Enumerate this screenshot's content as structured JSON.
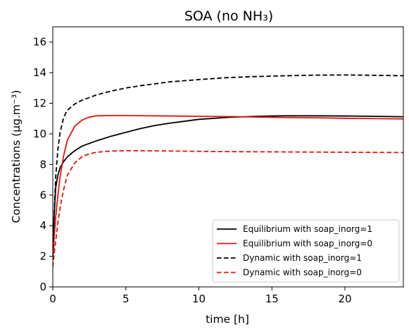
{
  "chart_data": {
    "type": "line",
    "title": "SOA (no NH₃)",
    "xlabel": "time [h]",
    "ylabel": "Concentrations (μg.m⁻³)",
    "xlim": [
      0,
      24
    ],
    "ylim": [
      0,
      17
    ],
    "xticks": [
      0,
      5,
      10,
      15,
      20
    ],
    "yticks": [
      0,
      2,
      4,
      6,
      8,
      10,
      12,
      14,
      16
    ],
    "grid": false,
    "legend_position": "lower-right",
    "series": [
      {
        "name": "Equilibrium with soap_inorg=1",
        "color": "#000000",
        "dash": "solid",
        "x": [
          0,
          0.1,
          0.2,
          0.35,
          0.5,
          0.75,
          1,
          1.5,
          2,
          3,
          4,
          5,
          6,
          7,
          8,
          10,
          12,
          14,
          15,
          16,
          17,
          18,
          20,
          22,
          24
        ],
        "y": [
          2.2,
          4.8,
          6.5,
          7.3,
          7.8,
          8.2,
          8.5,
          8.9,
          9.2,
          9.55,
          9.85,
          10.1,
          10.35,
          10.55,
          10.7,
          10.95,
          11.08,
          11.15,
          11.17,
          11.18,
          11.18,
          11.18,
          11.17,
          11.15,
          11.12
        ]
      },
      {
        "name": "Equilibrium with soap_inorg=0",
        "color": "#e3140c",
        "dash": "solid",
        "x": [
          0,
          0.1,
          0.2,
          0.35,
          0.5,
          0.75,
          1,
          1.5,
          2,
          2.5,
          3,
          4,
          5,
          6,
          8,
          10,
          12,
          14,
          16,
          18,
          20,
          22,
          24
        ],
        "y": [
          1.8,
          3.3,
          4.6,
          6.0,
          7.2,
          8.6,
          9.6,
          10.5,
          10.9,
          11.1,
          11.18,
          11.2,
          11.2,
          11.19,
          11.17,
          11.15,
          11.13,
          11.1,
          11.07,
          11.05,
          11.02,
          11.0,
          10.98
        ]
      },
      {
        "name": "Dynamic with soap_inorg=1",
        "color": "#000000",
        "dash": "dashed",
        "x": [
          0,
          0.1,
          0.2,
          0.35,
          0.5,
          0.75,
          1,
          1.5,
          2,
          3,
          4,
          5,
          6,
          8,
          10,
          12,
          14,
          16,
          18,
          20,
          22,
          24
        ],
        "y": [
          2.0,
          5.0,
          7.2,
          9.0,
          10.1,
          11.1,
          11.55,
          11.95,
          12.2,
          12.55,
          12.8,
          13.0,
          13.15,
          13.4,
          13.55,
          13.68,
          13.75,
          13.8,
          13.84,
          13.85,
          13.83,
          13.8
        ]
      },
      {
        "name": "Dynamic with soap_inorg=0",
        "color": "#e3140c",
        "dash": "dashed",
        "x": [
          0,
          0.1,
          0.2,
          0.35,
          0.5,
          0.75,
          1,
          1.5,
          2,
          2.5,
          3,
          4,
          5,
          6,
          8,
          10,
          12,
          14,
          16,
          18,
          20,
          22,
          24
        ],
        "y": [
          1.3,
          2.2,
          3.0,
          4.2,
          5.2,
          6.4,
          7.3,
          8.1,
          8.5,
          8.7,
          8.8,
          8.88,
          8.9,
          8.9,
          8.88,
          8.86,
          8.84,
          8.83,
          8.82,
          8.81,
          8.8,
          8.79,
          8.78
        ]
      }
    ]
  }
}
